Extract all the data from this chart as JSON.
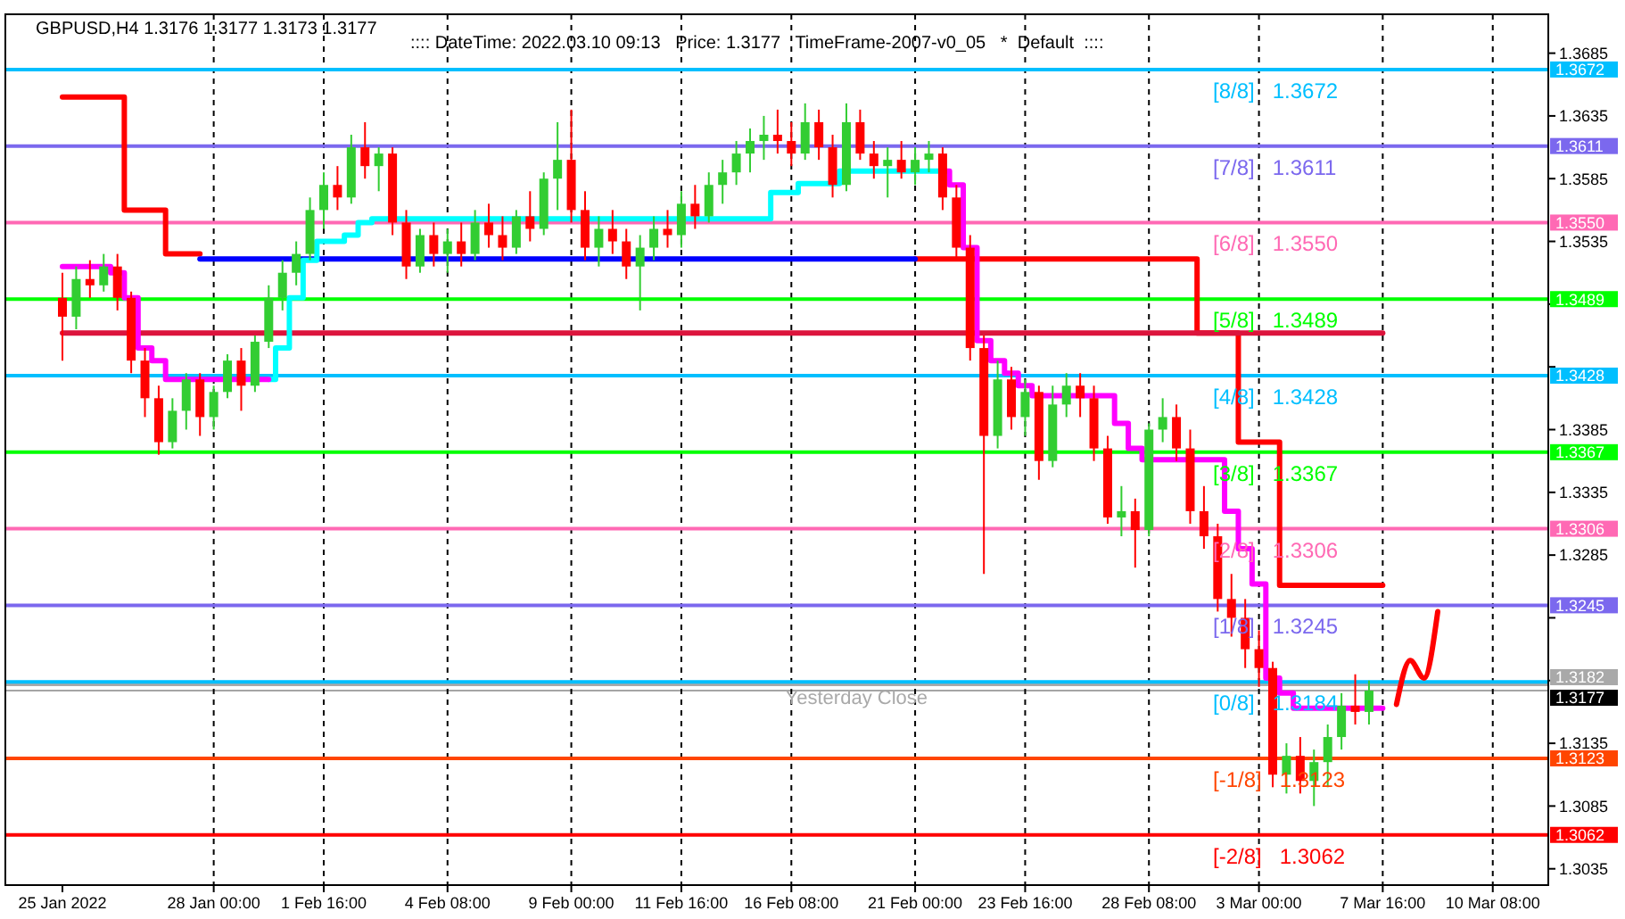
{
  "chart_data": {
    "type": "candlestick",
    "title": "GBPUSD,H4  1.3176 1.3177 1.3173 1.3177",
    "subtitle": ":::: DateTime: 2022.03.10 09:13   Price: 1.3177   TimeFrame-2007-v0_05   *  Default  ::::",
    "categories": [
      "25 Jan 2022",
      null,
      null,
      null,
      null,
      null,
      null,
      null,
      null,
      null,
      null,
      "28 Jan 00:00",
      null,
      null,
      null,
      null,
      null,
      null,
      null,
      "1 Feb 16:00",
      null,
      null,
      null,
      null,
      null,
      null,
      null,
      null,
      "4 Feb 08:00",
      null,
      null,
      null,
      null,
      null,
      null,
      null,
      null,
      "9 Feb 00:00",
      null,
      null,
      null,
      null,
      null,
      null,
      null,
      "11 Feb 16:00",
      null,
      null,
      null,
      null,
      null,
      null,
      null,
      "16 Feb 08:00",
      null,
      null,
      null,
      null,
      null,
      null,
      null,
      null,
      "21 Feb 00:00",
      null,
      null,
      null,
      null,
      null,
      null,
      null,
      "23 Feb 16:00",
      null,
      null,
      null,
      null,
      null,
      null,
      null,
      null,
      "28 Feb 08:00",
      null,
      null,
      null,
      null,
      null,
      null,
      null,
      "3 Mar 00:00",
      null,
      null,
      null,
      null,
      null,
      null,
      null,
      null,
      "7 Mar 16:00",
      null,
      null,
      null,
      null,
      null,
      null,
      null,
      "10 Mar 08:00",
      null,
      null,
      null
    ],
    "ohlc": [
      [
        1.349,
        1.351,
        1.344,
        1.3475
      ],
      [
        1.3475,
        1.3515,
        1.3465,
        1.3505
      ],
      [
        1.3505,
        1.352,
        1.349,
        1.35
      ],
      [
        1.35,
        1.3525,
        1.3495,
        1.3515
      ],
      [
        1.3515,
        1.3525,
        1.348,
        1.349
      ],
      [
        1.349,
        1.3495,
        1.343,
        1.344
      ],
      [
        1.344,
        1.345,
        1.3395,
        1.341
      ],
      [
        1.341,
        1.342,
        1.3365,
        1.3375
      ],
      [
        1.3375,
        1.341,
        1.337,
        1.34
      ],
      [
        1.34,
        1.343,
        1.3385,
        1.3425
      ],
      [
        1.3425,
        1.343,
        1.338,
        1.3395
      ],
      [
        1.3395,
        1.342,
        1.3385,
        1.3415
      ],
      [
        1.3415,
        1.3445,
        1.341,
        1.344
      ],
      [
        1.344,
        1.345,
        1.34,
        1.342
      ],
      [
        1.342,
        1.346,
        1.3415,
        1.3455
      ],
      [
        1.3455,
        1.35,
        1.345,
        1.349
      ],
      [
        1.349,
        1.352,
        1.348,
        1.351
      ],
      [
        1.351,
        1.3535,
        1.35,
        1.3525
      ],
      [
        1.3525,
        1.357,
        1.352,
        1.356
      ],
      [
        1.356,
        1.359,
        1.3545,
        1.358
      ],
      [
        1.358,
        1.3595,
        1.356,
        1.357
      ],
      [
        1.357,
        1.362,
        1.3565,
        1.361
      ],
      [
        1.361,
        1.363,
        1.3585,
        1.3595
      ],
      [
        1.3595,
        1.361,
        1.3575,
        1.3605
      ],
      [
        1.3605,
        1.361,
        1.354,
        1.355
      ],
      [
        1.355,
        1.356,
        1.3505,
        1.3515
      ],
      [
        1.3515,
        1.3545,
        1.351,
        1.354
      ],
      [
        1.354,
        1.355,
        1.3515,
        1.3525
      ],
      [
        1.3525,
        1.3545,
        1.351,
        1.3535
      ],
      [
        1.3535,
        1.355,
        1.3515,
        1.3525
      ],
      [
        1.3525,
        1.356,
        1.352,
        1.355
      ],
      [
        1.355,
        1.3565,
        1.353,
        1.354
      ],
      [
        1.354,
        1.3555,
        1.352,
        1.353
      ],
      [
        1.353,
        1.356,
        1.3525,
        1.3555
      ],
      [
        1.3555,
        1.3575,
        1.3535,
        1.3545
      ],
      [
        1.3545,
        1.359,
        1.354,
        1.3585
      ],
      [
        1.3585,
        1.363,
        1.356,
        1.36
      ],
      [
        1.36,
        1.364,
        1.355,
        1.356
      ],
      [
        1.356,
        1.3575,
        1.352,
        1.353
      ],
      [
        1.353,
        1.3555,
        1.3515,
        1.3545
      ],
      [
        1.3545,
        1.356,
        1.3525,
        1.3535
      ],
      [
        1.3535,
        1.3545,
        1.3505,
        1.3515
      ],
      [
        1.3515,
        1.354,
        1.348,
        1.353
      ],
      [
        1.353,
        1.3555,
        1.352,
        1.3545
      ],
      [
        1.3545,
        1.356,
        1.353,
        1.354
      ],
      [
        1.354,
        1.3575,
        1.353,
        1.3565
      ],
      [
        1.3565,
        1.358,
        1.3545,
        1.3555
      ],
      [
        1.3555,
        1.359,
        1.355,
        1.358
      ],
      [
        1.358,
        1.36,
        1.3565,
        1.359
      ],
      [
        1.359,
        1.3615,
        1.358,
        1.3605
      ],
      [
        1.3605,
        1.3625,
        1.359,
        1.3615
      ],
      [
        1.3615,
        1.3635,
        1.36,
        1.362
      ],
      [
        1.362,
        1.364,
        1.3605,
        1.3615
      ],
      [
        1.3615,
        1.363,
        1.3595,
        1.3605
      ],
      [
        1.3605,
        1.3645,
        1.36,
        1.363
      ],
      [
        1.363,
        1.364,
        1.36,
        1.361
      ],
      [
        1.361,
        1.362,
        1.357,
        1.358
      ],
      [
        1.358,
        1.3645,
        1.3575,
        1.363
      ],
      [
        1.363,
        1.364,
        1.36,
        1.3605
      ],
      [
        1.3605,
        1.3615,
        1.3585,
        1.3595
      ],
      [
        1.3595,
        1.361,
        1.357,
        1.36
      ],
      [
        1.36,
        1.3615,
        1.3585,
        1.359
      ],
      [
        1.359,
        1.361,
        1.358,
        1.36
      ],
      [
        1.36,
        1.3615,
        1.359,
        1.3605
      ],
      [
        1.3605,
        1.361,
        1.356,
        1.357
      ],
      [
        1.357,
        1.358,
        1.352,
        1.353
      ],
      [
        1.353,
        1.354,
        1.344,
        1.345
      ],
      [
        1.345,
        1.346,
        1.327,
        1.338
      ],
      [
        1.338,
        1.344,
        1.337,
        1.3425
      ],
      [
        1.3425,
        1.3435,
        1.3385,
        1.3395
      ],
      [
        1.3395,
        1.3425,
        1.338,
        1.3415
      ],
      [
        1.3415,
        1.342,
        1.3345,
        1.336
      ],
      [
        1.336,
        1.342,
        1.3355,
        1.3405
      ],
      [
        1.3405,
        1.343,
        1.3395,
        1.342
      ],
      [
        1.342,
        1.343,
        1.3395,
        1.341
      ],
      [
        1.341,
        1.342,
        1.336,
        1.337
      ],
      [
        1.337,
        1.338,
        1.331,
        1.3315
      ],
      [
        1.3315,
        1.334,
        1.33,
        1.332
      ],
      [
        1.332,
        1.333,
        1.3275,
        1.3305
      ],
      [
        1.3305,
        1.339,
        1.33,
        1.3385
      ],
      [
        1.3385,
        1.341,
        1.3375,
        1.3395
      ],
      [
        1.3395,
        1.3405,
        1.336,
        1.337
      ],
      [
        1.337,
        1.3385,
        1.331,
        1.332
      ],
      [
        1.332,
        1.334,
        1.329,
        1.33
      ],
      [
        1.33,
        1.331,
        1.324,
        1.325
      ],
      [
        1.325,
        1.327,
        1.322,
        1.3235
      ],
      [
        1.3235,
        1.325,
        1.3195,
        1.321
      ],
      [
        1.321,
        1.3225,
        1.318,
        1.3195
      ],
      [
        1.3195,
        1.32,
        1.31,
        1.311
      ],
      [
        1.311,
        1.3135,
        1.3095,
        1.3125
      ],
      [
        1.3125,
        1.314,
        1.3095,
        1.3105
      ],
      [
        1.3105,
        1.313,
        1.3085,
        1.312
      ],
      [
        1.312,
        1.315,
        1.31,
        1.314
      ],
      [
        1.314,
        1.3175,
        1.313,
        1.3165
      ],
      [
        1.3165,
        1.319,
        1.315,
        1.316
      ],
      [
        1.316,
        1.3185,
        1.315,
        1.3177
      ],
      null,
      null,
      null,
      null,
      null,
      null,
      null,
      null,
      null,
      null,
      null,
      null
    ],
    "series": [
      {
        "type": "step",
        "color": "#ff0000",
        "values": [
          1.365,
          1.365,
          1.365,
          1.365,
          1.365,
          1.356,
          1.356,
          1.356,
          1.3525,
          1.3525,
          1.3525,
          null,
          null,
          null,
          null,
          null,
          null,
          null,
          null,
          null,
          null,
          null,
          null,
          null,
          null,
          null,
          null,
          null,
          null,
          null,
          null,
          null,
          null,
          null,
          null,
          null,
          null,
          null,
          null,
          null,
          null,
          null,
          null,
          null,
          null,
          null,
          null,
          null,
          null,
          null,
          null,
          null,
          null,
          null,
          null,
          null,
          null,
          null,
          null,
          null,
          null,
          null,
          1.3521,
          1.3521,
          1.3521,
          1.3521,
          1.3521,
          1.3521,
          1.3521,
          1.3521,
          1.3521,
          1.3521,
          1.3521,
          1.3521,
          1.3521,
          1.3521,
          1.3521,
          1.3521,
          1.3521,
          1.3521,
          1.3521,
          1.3521,
          1.3521,
          1.3462,
          1.3462,
          1.3462,
          1.3375,
          1.3375,
          1.3375,
          1.3261,
          1.3261,
          1.3261,
          1.3261,
          1.3261,
          1.3261,
          1.3261,
          1.3261,
          null,
          null,
          null,
          null,
          null,
          null,
          null,
          null,
          null,
          null,
          null
        ]
      },
      {
        "type": "step",
        "color": "#0000ff",
        "values": [
          null,
          null,
          null,
          null,
          null,
          null,
          null,
          null,
          null,
          null,
          1.3521,
          1.3521,
          1.3521,
          1.3521,
          1.3521,
          1.3521,
          1.3521,
          1.3521,
          1.3521,
          1.3521,
          1.3521,
          1.3521,
          1.3521,
          1.3521,
          1.3521,
          1.3521,
          1.3521,
          1.3521,
          1.3521,
          1.3521,
          1.3521,
          1.3521,
          1.3521,
          1.3521,
          1.3521,
          1.3521,
          1.3521,
          1.3521,
          1.3521,
          1.3521,
          1.3521,
          1.3521,
          1.3521,
          1.3521,
          1.3521,
          1.3521,
          1.3521,
          1.3521,
          1.3521,
          1.3521,
          1.3521,
          1.3521,
          1.3521,
          1.3521,
          1.3521,
          1.3521,
          1.3521,
          1.3521,
          1.3521,
          1.3521,
          1.3521,
          1.3521,
          1.3521,
          null,
          null,
          null,
          null,
          null,
          null,
          null,
          null,
          null,
          null,
          null,
          null,
          null,
          null,
          null,
          null,
          null,
          null,
          null,
          null,
          null,
          null,
          null,
          null,
          null,
          null,
          null,
          null,
          null,
          null,
          null,
          null,
          null,
          null,
          null,
          null,
          null,
          null,
          null,
          null,
          null,
          null,
          null,
          null,
          null
        ]
      },
      {
        "type": "line",
        "color": "#dc143c",
        "values": [
          1.3462,
          1.3462,
          1.3462,
          1.3462,
          1.3462,
          1.3462,
          1.3462,
          1.3462,
          1.3462,
          1.3462,
          1.3462,
          1.3462,
          1.3462,
          1.3462,
          1.3462,
          1.3462,
          1.3462,
          1.3462,
          1.3462,
          1.3462,
          1.3462,
          1.3462,
          1.3462,
          1.3462,
          1.3462,
          1.3462,
          1.3462,
          1.3462,
          1.3462,
          1.3462,
          1.3462,
          1.3462,
          1.3462,
          1.3462,
          1.3462,
          1.3462,
          1.3462,
          1.3462,
          1.3462,
          1.3462,
          1.3462,
          1.3462,
          1.3462,
          1.3462,
          1.3462,
          1.3462,
          1.3462,
          1.3462,
          1.3462,
          1.3462,
          1.3462,
          1.3462,
          1.3462,
          1.3462,
          1.3462,
          1.3462,
          1.3462,
          1.3462,
          1.3462,
          1.3462,
          1.3462,
          1.3462,
          1.3462,
          1.3462,
          1.3462,
          1.3462,
          1.3462,
          1.3462,
          1.3462,
          1.3462,
          1.3462,
          1.3462,
          1.3462,
          1.3462,
          1.3462,
          1.3462,
          1.3462,
          1.3462,
          1.3462,
          1.3462,
          1.3462,
          1.3462,
          1.3462,
          1.3462,
          1.3462,
          1.3462,
          1.3462,
          1.3462,
          1.3462,
          1.3462,
          1.3462,
          1.3462,
          1.3462,
          1.3462,
          1.3462,
          1.3462,
          1.3462,
          null,
          null,
          null,
          null,
          null,
          null,
          null,
          null,
          null,
          null,
          null
        ]
      },
      {
        "type": "step",
        "color": "#00ffff",
        "values": [
          null,
          null,
          null,
          null,
          null,
          null,
          null,
          null,
          null,
          null,
          null,
          null,
          null,
          null,
          null,
          1.3425,
          1.345,
          1.349,
          1.352,
          1.3535,
          1.3535,
          1.354,
          1.355,
          1.3553,
          1.3553,
          1.3553,
          1.3553,
          1.3553,
          1.3553,
          1.3553,
          1.3553,
          1.3553,
          1.3553,
          1.3553,
          1.3553,
          1.3553,
          1.3553,
          1.3553,
          1.3553,
          1.3553,
          1.3553,
          1.3553,
          1.3553,
          1.3553,
          1.3553,
          1.3553,
          1.3553,
          1.3553,
          1.3553,
          1.3553,
          1.3553,
          1.3553,
          1.3574,
          1.3574,
          1.3581,
          1.3581,
          1.3581,
          1.3591,
          1.3591,
          1.3591,
          1.3591,
          1.3591,
          1.3591,
          1.3591,
          1.3591,
          null,
          null,
          null,
          null,
          null,
          null,
          null,
          null,
          null,
          null,
          null,
          null,
          null,
          null,
          null,
          null,
          null,
          null,
          null,
          null,
          null,
          null,
          null,
          null,
          null,
          null,
          null,
          null,
          null,
          null,
          null,
          null,
          null,
          null,
          null,
          null,
          null,
          null,
          null,
          null,
          null,
          null,
          null
        ]
      },
      {
        "type": "step",
        "color": "#ff00ff",
        "values": [
          1.3515,
          1.3515,
          1.3515,
          1.3515,
          1.351,
          1.349,
          1.345,
          1.344,
          1.3425,
          1.3425,
          1.3425,
          1.3425,
          1.3425,
          1.3425,
          1.3425,
          1.3425,
          null,
          null,
          null,
          null,
          null,
          null,
          null,
          null,
          null,
          null,
          null,
          null,
          null,
          null,
          null,
          null,
          null,
          null,
          null,
          null,
          null,
          null,
          null,
          null,
          null,
          null,
          null,
          null,
          null,
          null,
          null,
          null,
          null,
          null,
          null,
          null,
          null,
          null,
          null,
          null,
          null,
          null,
          null,
          null,
          null,
          null,
          null,
          null,
          1.3591,
          1.358,
          1.353,
          1.3456,
          1.344,
          1.343,
          1.342,
          1.3412,
          1.3412,
          1.3412,
          1.3412,
          1.3412,
          1.3412,
          1.339,
          1.337,
          1.3361,
          1.3361,
          1.3361,
          1.3361,
          1.3361,
          1.3361,
          1.332,
          1.329,
          1.3262,
          1.3187,
          1.3175,
          1.3163,
          1.3163,
          1.3163,
          1.3163,
          1.3163,
          1.3163,
          1.3163,
          null,
          null,
          null,
          null,
          null,
          null,
          null,
          null,
          null,
          null,
          null
        ]
      },
      {
        "type": "line",
        "color": "#ff0000",
        "values": [
          null,
          null,
          null,
          null,
          null,
          null,
          null,
          null,
          null,
          null,
          null,
          null,
          null,
          null,
          null,
          null,
          null,
          null,
          null,
          null,
          null,
          null,
          null,
          null,
          null,
          null,
          null,
          null,
          null,
          null,
          null,
          null,
          null,
          null,
          null,
          null,
          null,
          null,
          null,
          null,
          null,
          null,
          null,
          null,
          null,
          null,
          null,
          null,
          null,
          null,
          null,
          null,
          null,
          null,
          null,
          null,
          null,
          null,
          null,
          null,
          null,
          null,
          null,
          null,
          null,
          null,
          null,
          null,
          null,
          null,
          null,
          null,
          null,
          null,
          null,
          null,
          null,
          null,
          null,
          null,
          null,
          null,
          null,
          null,
          null,
          null,
          null,
          null,
          null,
          null,
          null,
          null,
          null,
          null,
          null,
          null,
          null,
          1.3166,
          1.3201,
          1.3187,
          1.324,
          null,
          null,
          null,
          null,
          null,
          null,
          null
        ]
      }
    ],
    "ref_lines": [
      {
        "axis": "y",
        "value": 1.3672,
        "label": "[8/8]   1.3672",
        "color": "#00bfff"
      },
      {
        "axis": "y",
        "value": 1.3611,
        "label": "[7/8]   1.3611",
        "color": "#7b68ee"
      },
      {
        "axis": "y",
        "value": 1.355,
        "label": "[6/8]   1.3550",
        "color": "#ff69b4"
      },
      {
        "axis": "y",
        "value": 1.3489,
        "label": "[5/8]   1.3489",
        "color": "#00ff00"
      },
      {
        "axis": "y",
        "value": 1.3428,
        "label": "[4/8]   1.3428",
        "color": "#00bfff"
      },
      {
        "axis": "y",
        "value": 1.3367,
        "label": "[3/8]   1.3367",
        "color": "#00ff00"
      },
      {
        "axis": "y",
        "value": 1.3306,
        "label": "[2/8]   1.3306",
        "color": "#ff69b4"
      },
      {
        "axis": "y",
        "value": 1.3245,
        "label": "[1/8]   1.3245",
        "color": "#7b68ee"
      },
      {
        "axis": "y",
        "value": 1.3123,
        "label": "[-1/8]   1.3123",
        "color": "#ff4500"
      },
      {
        "axis": "y",
        "value": 1.3062,
        "label": "[-2/8]   1.3062",
        "color": "#ff0000"
      },
      {
        "axis": "y",
        "value": 1.3182,
        "label": "Yesterday Close",
        "color": "#a9a9a9"
      },
      {
        "axis": "y",
        "value": 1.3177,
        "color": "#000000"
      },
      {
        "axis": "y",
        "value": 1.3184,
        "label": "[0/8]   1.3184",
        "color": "#00bfff"
      }
    ],
    "annotations": [
      "1.3672",
      "1.3611",
      "1.3550",
      "1.3489",
      "1.3428",
      "1.3367",
      "1.3306",
      "1.3245",
      "1.3123",
      "1.3062",
      "1.3182",
      "1.3177"
    ],
    "ylim": [
      1.3022,
      1.3716
    ],
    "yticks": [
      1.3035,
      1.3085,
      1.3135,
      {
        "value": 1.3185,
        "label": null
      },
      {
        "value": 1.3235,
        "label": null
      },
      1.3285,
      1.3335,
      1.3385,
      {
        "value": 1.3435,
        "label": null
      },
      {
        "value": 1.3485,
        "label": null
      },
      1.3535,
      1.3585,
      1.3635,
      1.3685
    ],
    "grid": "x"
  }
}
